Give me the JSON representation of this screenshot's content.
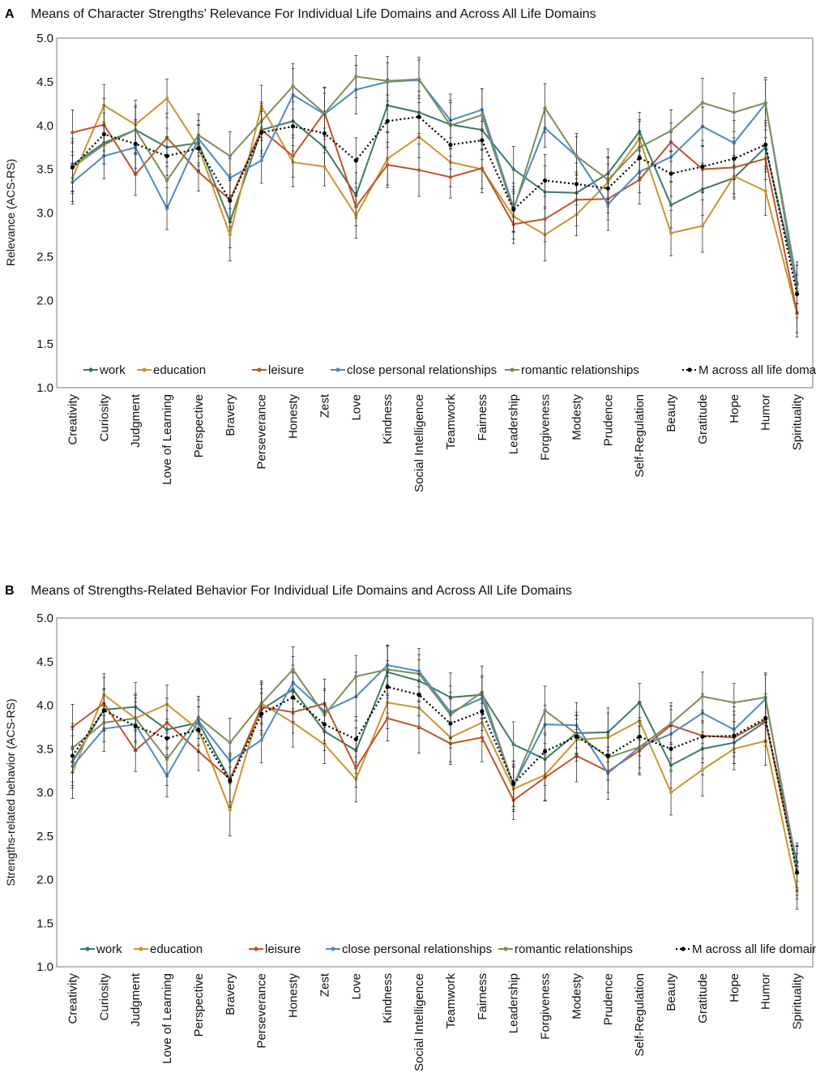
{
  "figure": {
    "width": 1007,
    "height": 1339
  },
  "categories": [
    "Creativity",
    "Curiosity",
    "Judgment",
    "Love of Learning",
    "Perspective",
    "Bravery",
    "Perseverance",
    "Honesty",
    "Zest",
    "Love",
    "Kindness",
    "Social Intelligence",
    "Teamwork",
    "Fairness",
    "Leadership",
    "Forgiveness",
    "Modesty",
    "Prudence",
    "Self-Regulation",
    "Beauty",
    "Gratitude",
    "Hope",
    "Humor",
    "Spirituality"
  ],
  "colors": {
    "work": "#3e7a6a",
    "education": "#c8962c",
    "leisure": "#c0532b",
    "close": "#4d8bc4",
    "romantic": "#7f8c5a",
    "mean": "#000000"
  },
  "chart_data": [
    {
      "panel": "A",
      "type": "line",
      "title": "Means of Character Strengths’ Relevance For Individual Life Domains and Across All Life Domains",
      "ylabel": "Relevance (ACS-RS)",
      "xlabel": "",
      "ylim": [
        1.0,
        5.0
      ],
      "yticks": [
        "1.0",
        "1.5",
        "2.0",
        "2.5",
        "3.0",
        "3.5",
        "4.0",
        "4.5",
        "5.0"
      ],
      "legend_position": "bottom-inside",
      "series": [
        {
          "key": "work",
          "name": "work",
          "values": [
            3.55,
            3.8,
            3.95,
            3.75,
            3.8,
            2.9,
            3.95,
            4.05,
            3.75,
            3.2,
            4.23,
            4.15,
            4.01,
            3.95,
            3.5,
            3.24,
            3.23,
            3.45,
            3.93,
            3.09,
            3.27,
            3.4,
            3.75,
            2.18
          ]
        },
        {
          "key": "education",
          "name": "education",
          "values": [
            3.4,
            4.23,
            4.01,
            4.31,
            3.75,
            2.75,
            4.22,
            3.58,
            3.53,
            2.97,
            3.62,
            3.87,
            3.58,
            3.5,
            2.96,
            2.75,
            2.98,
            3.35,
            3.85,
            2.77,
            2.85,
            3.42,
            3.25,
            1.85
          ]
        },
        {
          "key": "leisure",
          "name": "leisure",
          "values": [
            3.92,
            4.01,
            3.44,
            3.86,
            3.47,
            3.15,
            3.95,
            3.65,
            4.15,
            3.07,
            3.55,
            3.49,
            3.41,
            3.51,
            2.87,
            2.93,
            3.15,
            3.16,
            3.38,
            3.81,
            3.5,
            3.52,
            3.62,
            1.86
          ]
        },
        {
          "key": "close",
          "name": "close personal relationships",
          "values": [
            3.35,
            3.65,
            3.75,
            3.05,
            3.85,
            3.4,
            3.6,
            4.35,
            4.13,
            4.41,
            4.5,
            4.52,
            4.06,
            4.18,
            3.06,
            3.97,
            3.65,
            3.1,
            3.47,
            3.64,
            3.99,
            3.8,
            4.25,
            2.2
          ]
        },
        {
          "key": "romantic",
          "name": "romantic relationships",
          "values": [
            3.52,
            3.78,
            3.95,
            3.37,
            3.89,
            3.65,
            4.05,
            4.45,
            4.14,
            4.56,
            4.51,
            4.53,
            4.0,
            4.12,
            3.03,
            4.2,
            3.65,
            3.38,
            3.75,
            3.94,
            4.26,
            4.15,
            4.26,
            2.1
          ]
        },
        {
          "key": "mean",
          "name": "M across all life domains",
          "values": [
            3.52,
            3.9,
            3.79,
            3.65,
            3.74,
            3.14,
            3.92,
            3.99,
            3.91,
            3.6,
            4.05,
            4.1,
            3.78,
            3.83,
            3.04,
            3.37,
            3.33,
            3.28,
            3.63,
            3.45,
            3.53,
            3.62,
            3.78,
            2.07
          ]
        }
      ],
      "error_bars": "±0.2 to ±0.3 approx."
    },
    {
      "panel": "B",
      "type": "line",
      "title": "Means of Strengths-Related Behavior For Individual Life Domains and Across All Life Domains",
      "ylabel": "Strengths-related behavior (ACS-RS)",
      "xlabel": "",
      "ylim": [
        1.0,
        5.0
      ],
      "yticks": [
        "1.0",
        "1.5",
        "2.0",
        "2.5",
        "3.0",
        "3.5",
        "4.0",
        "4.5",
        "5.0"
      ],
      "legend_position": "bottom-inside",
      "series": [
        {
          "key": "work",
          "name": "work",
          "values": [
            3.35,
            3.95,
            3.98,
            3.72,
            3.8,
            3.15,
            3.95,
            4.18,
            3.7,
            3.48,
            4.38,
            4.28,
            4.09,
            4.12,
            3.55,
            3.38,
            3.68,
            3.69,
            4.03,
            3.31,
            3.5,
            3.57,
            3.81,
            2.2
          ]
        },
        {
          "key": "education",
          "name": "education",
          "values": [
            3.23,
            4.12,
            3.85,
            4.01,
            3.72,
            2.8,
            4.02,
            3.8,
            3.55,
            3.15,
            4.03,
            3.97,
            3.63,
            3.8,
            3.04,
            3.2,
            3.6,
            3.63,
            3.82,
            3.0,
            3.26,
            3.5,
            3.59,
            1.88
          ]
        },
        {
          "key": "leisure",
          "name": "leisure",
          "values": [
            3.75,
            4.02,
            3.48,
            3.8,
            3.47,
            3.15,
            3.98,
            3.92,
            4.02,
            3.28,
            3.85,
            3.75,
            3.56,
            3.63,
            2.91,
            3.17,
            3.42,
            3.24,
            3.48,
            3.77,
            3.65,
            3.63,
            3.83,
            2.1
          ]
        },
        {
          "key": "close",
          "name": "close personal relationships",
          "values": [
            3.3,
            3.73,
            3.78,
            3.19,
            3.82,
            3.36,
            3.6,
            4.26,
            3.93,
            4.1,
            4.46,
            4.39,
            3.92,
            4.08,
            3.08,
            3.78,
            3.77,
            3.22,
            3.52,
            3.67,
            3.91,
            3.72,
            4.07,
            2.15
          ]
        },
        {
          "key": "romantic",
          "name": "romantic relationships",
          "values": [
            3.51,
            3.8,
            3.85,
            3.38,
            3.86,
            3.57,
            4.02,
            4.41,
            3.89,
            4.33,
            4.41,
            4.36,
            3.89,
            4.15,
            3.08,
            3.94,
            3.67,
            3.4,
            3.52,
            3.79,
            4.1,
            4.03,
            4.09,
            2.08
          ]
        },
        {
          "key": "mean",
          "name": "M across all life domains",
          "values": [
            3.42,
            3.94,
            3.76,
            3.62,
            3.72,
            3.13,
            3.9,
            4.09,
            3.78,
            3.61,
            4.21,
            4.12,
            3.79,
            3.93,
            3.1,
            3.47,
            3.64,
            3.42,
            3.64,
            3.5,
            3.64,
            3.65,
            3.85,
            2.08
          ]
        }
      ],
      "error_bars": "±0.2 to ±0.3 approx."
    }
  ]
}
